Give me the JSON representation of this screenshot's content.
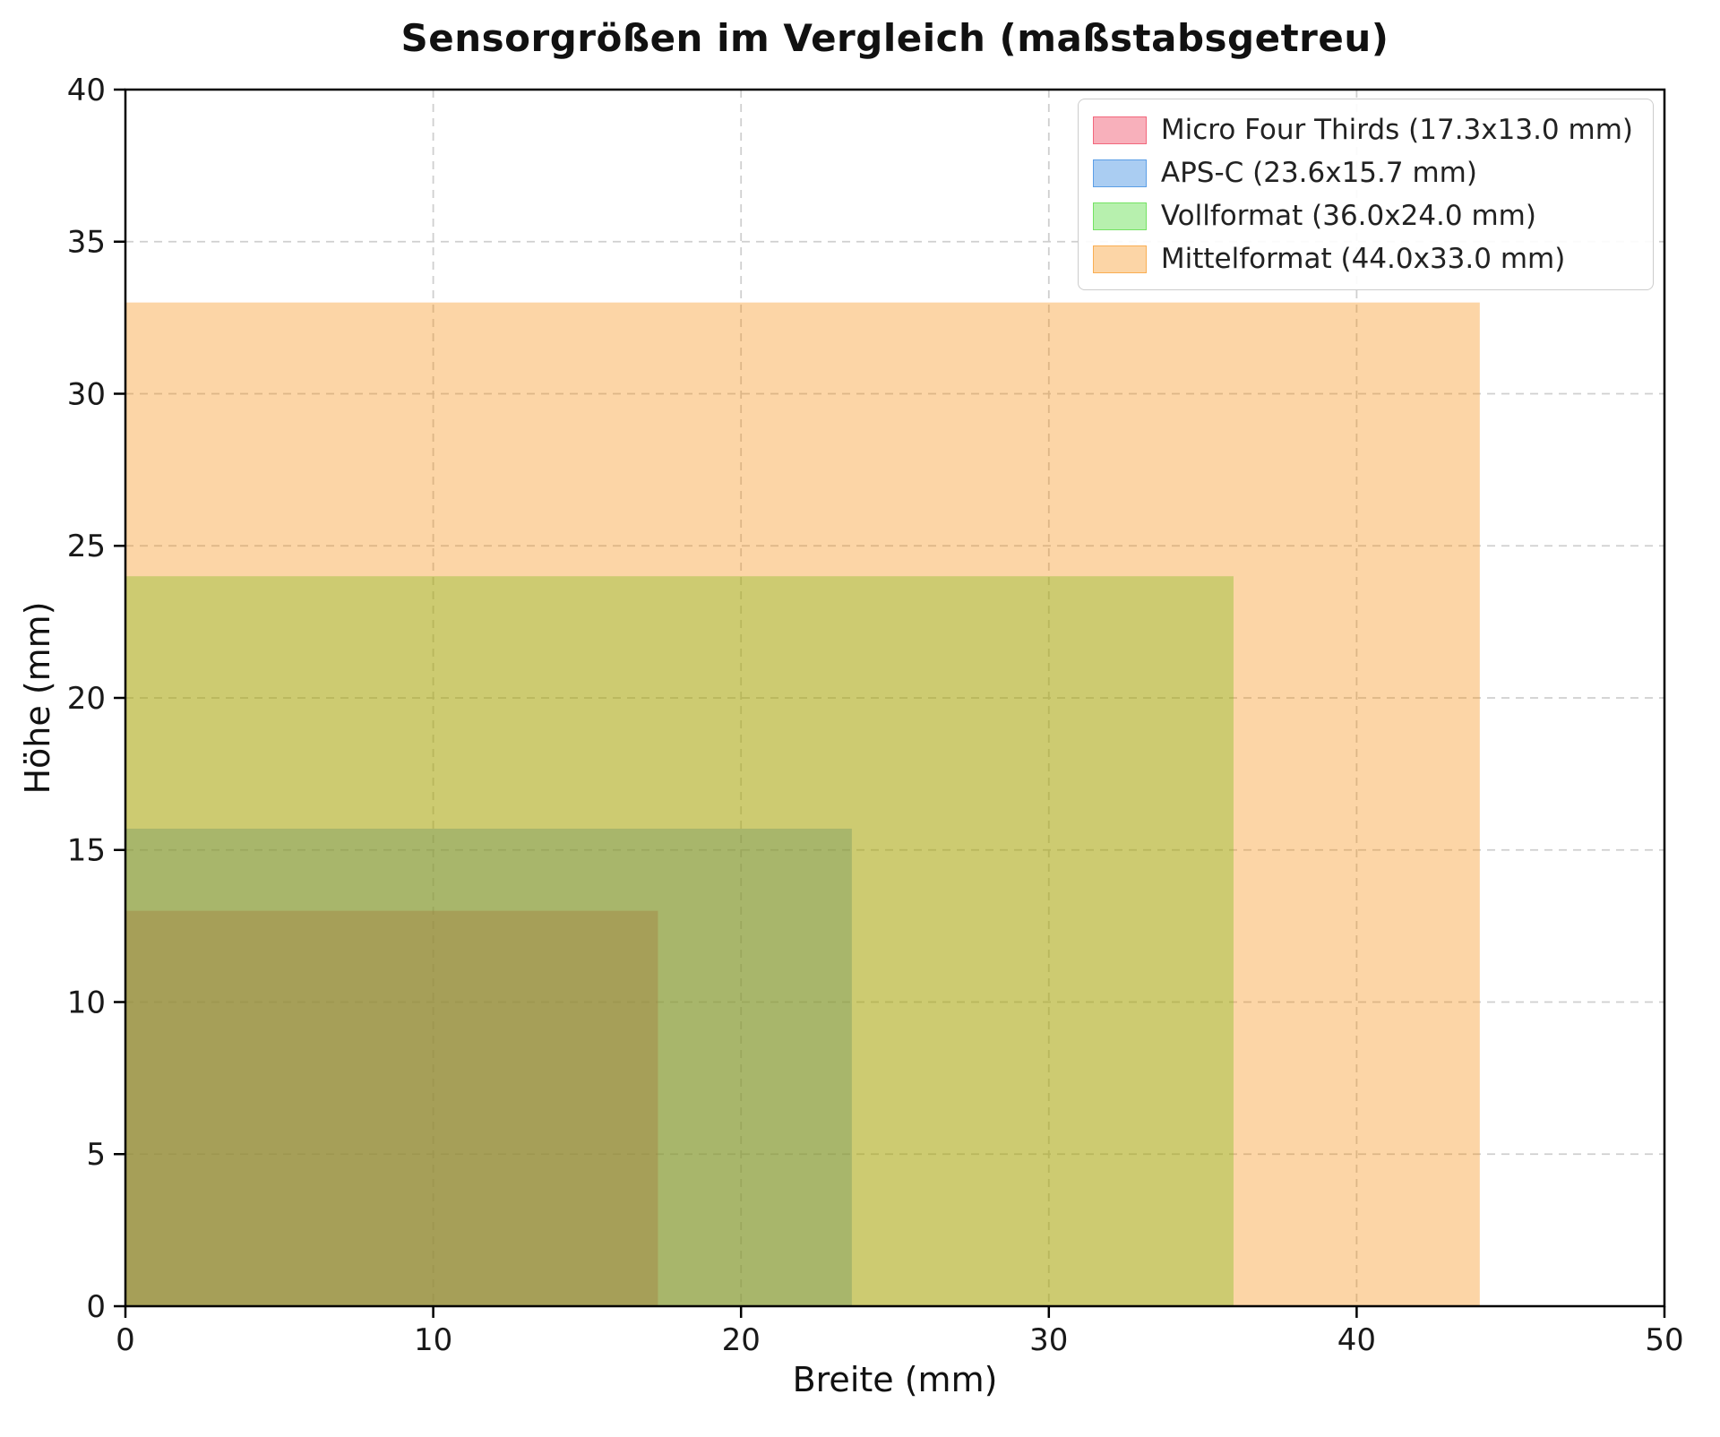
{
  "chart_data": {
    "type": "area",
    "title": "Sensorgrößen im Vergleich (maßstabsgetreu)",
    "xlabel": "Breite (mm)",
    "ylabel": "Höhe (mm)",
    "xlim": [
      0,
      50
    ],
    "ylim": [
      0,
      40
    ],
    "xticks": [
      0,
      10,
      20,
      30,
      40,
      50
    ],
    "yticks": [
      0,
      5,
      10,
      15,
      20,
      25,
      30,
      35,
      40
    ],
    "grid": true,
    "grid_style": "dashed",
    "legend_position": "upper right",
    "series": [
      {
        "name": "Micro Four Thirds (17.3x13.0 mm)",
        "width_mm": 17.3,
        "height_mm": 13.0,
        "x0": 0,
        "y0": 0,
        "color": "#eb1d3d",
        "alpha": 0.35
      },
      {
        "name": "APS-C (23.6x15.7 mm)",
        "width_mm": 23.6,
        "height_mm": 15.7,
        "x0": 0,
        "y0": 0,
        "color": "#0c70da",
        "alpha": 0.35
      },
      {
        "name": "Vollformat (36.0x24.0 mm)",
        "width_mm": 36.0,
        "height_mm": 24.0,
        "x0": 0,
        "y0": 0,
        "color": "#31d418",
        "alpha": 0.35
      },
      {
        "name": "Mittelformat (44.0x33.0 mm)",
        "width_mm": 44.0,
        "height_mm": 33.0,
        "x0": 0,
        "y0": 0,
        "color": "#f68700",
        "alpha": 0.35
      }
    ],
    "colors": {
      "grid": "#cfcfcf",
      "spine": "#000000",
      "tick_text": "#191919"
    }
  }
}
